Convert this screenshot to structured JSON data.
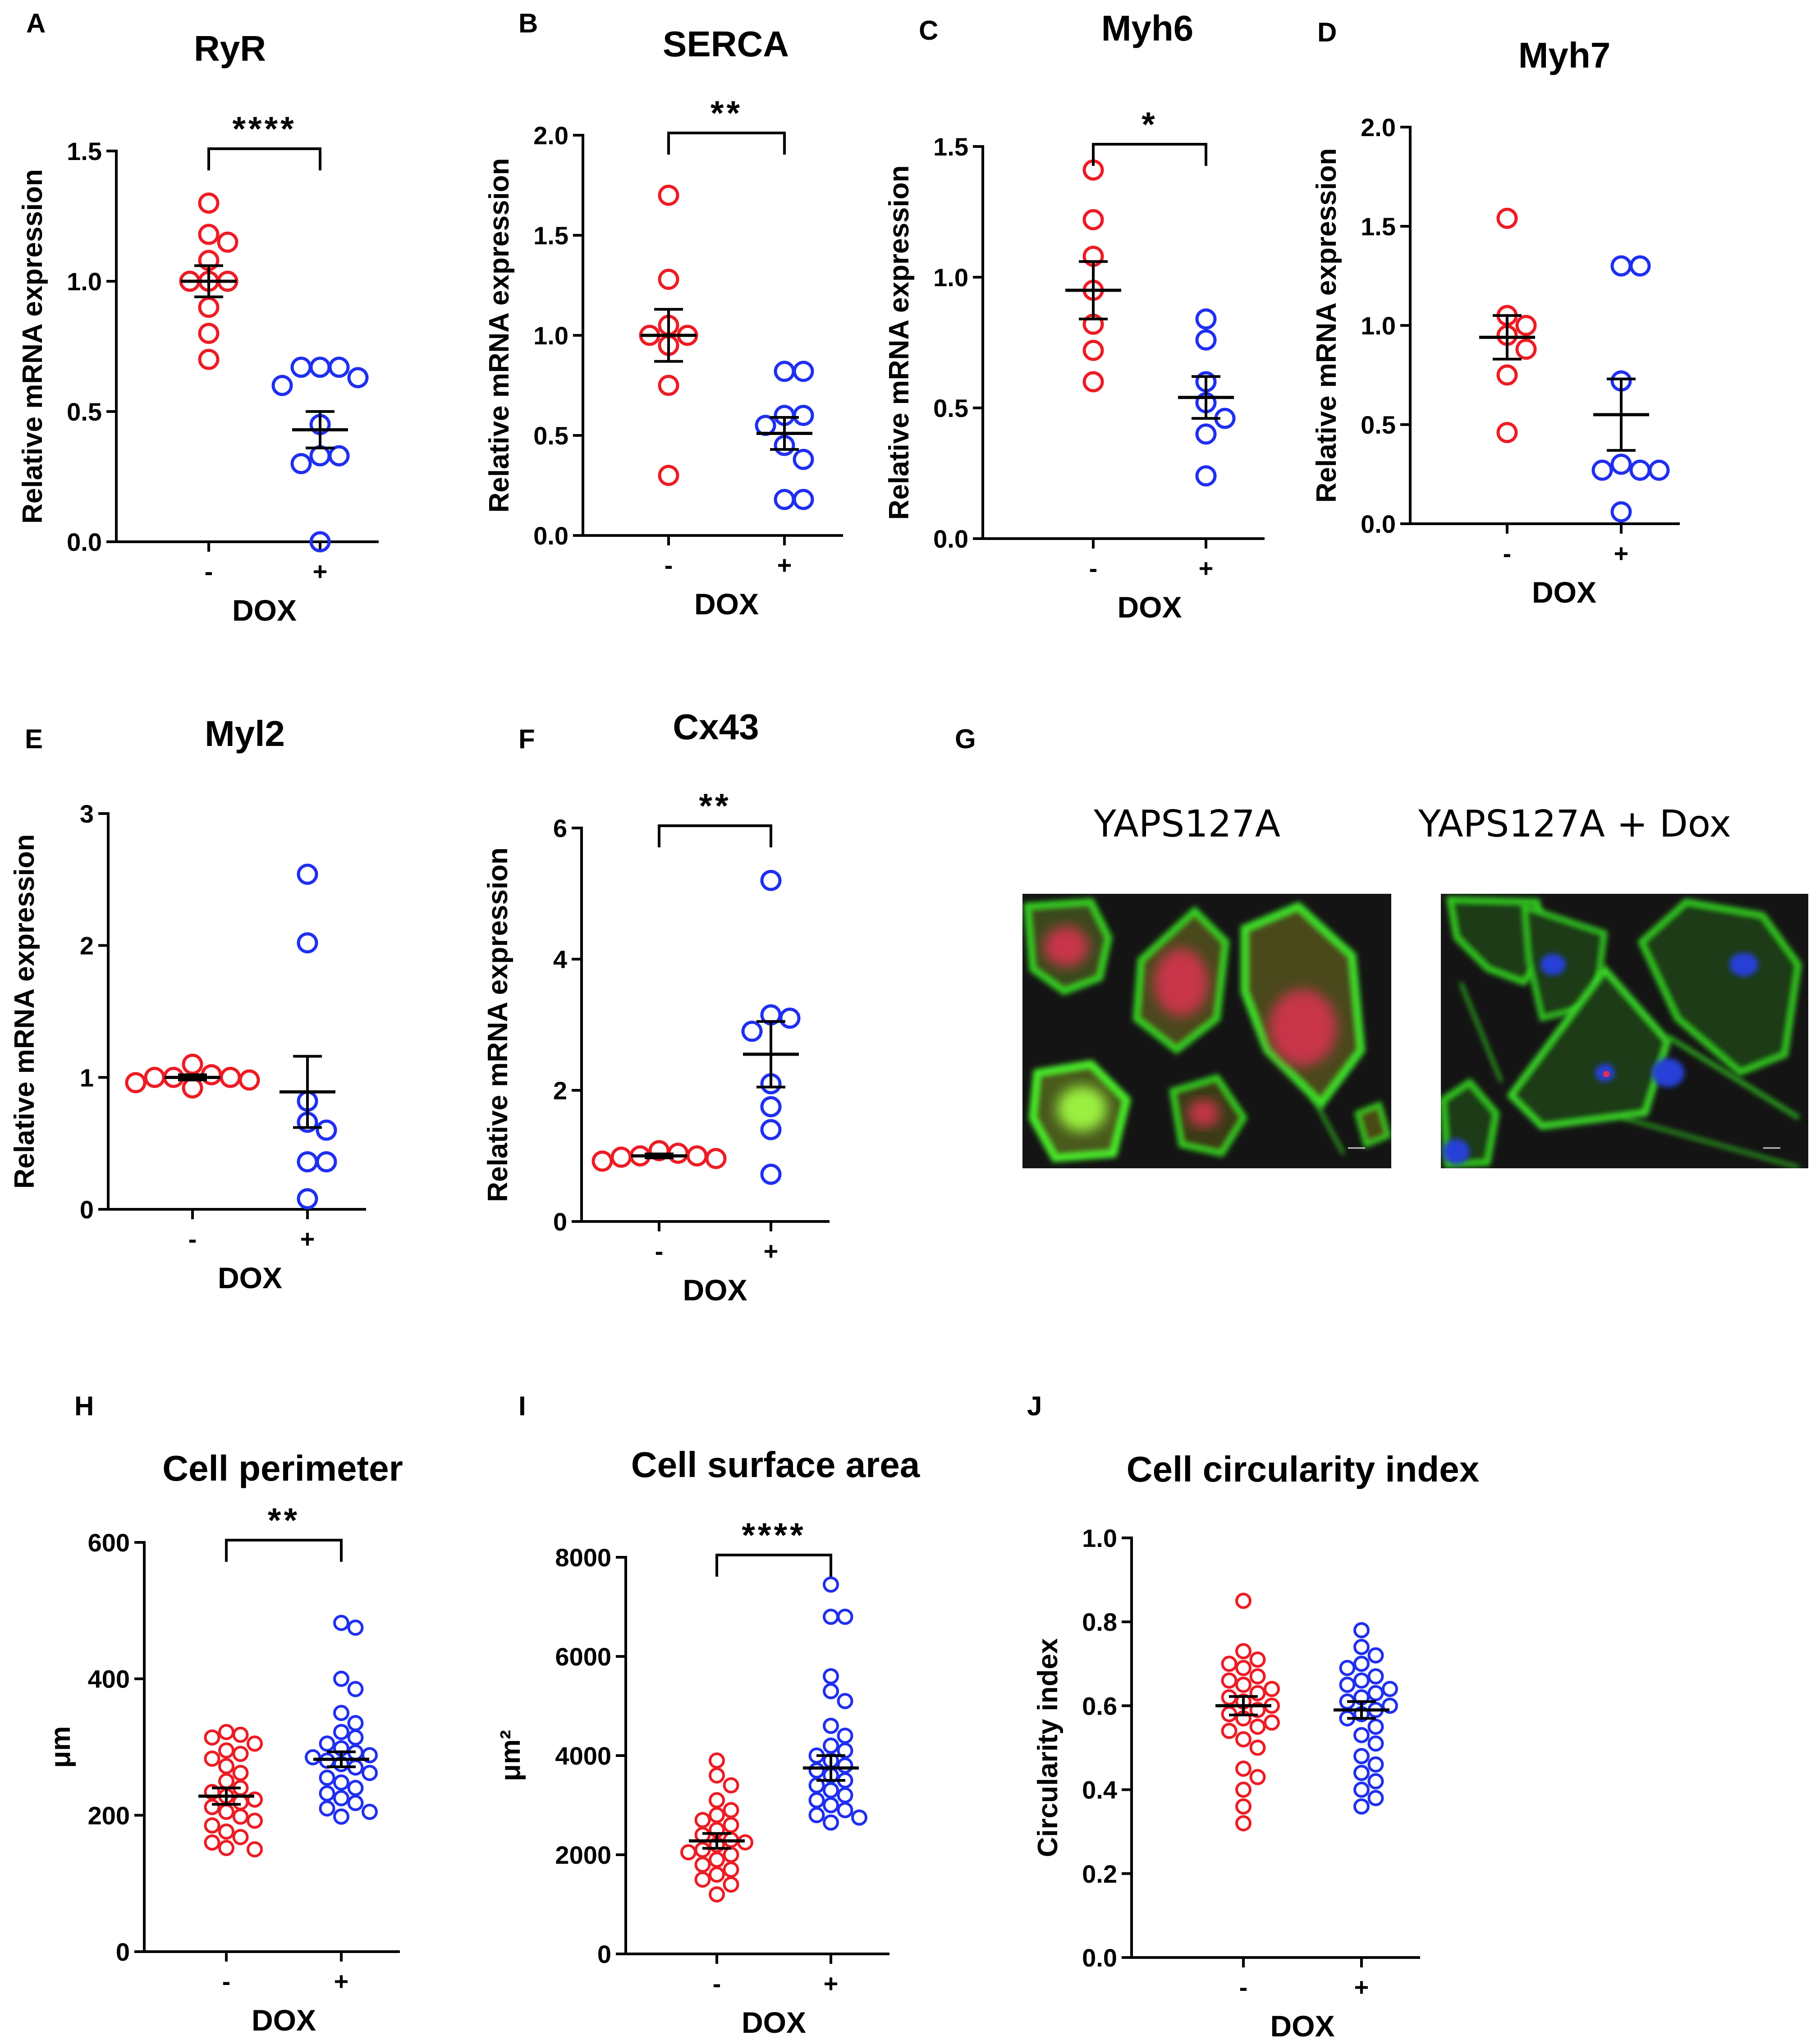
{
  "colors": {
    "control": "#ed1c24",
    "dox": "#1f2ff0",
    "axis": "#000000",
    "micrograph_bg": "#141414",
    "actin": "#34d424",
    "nucleus_red": "#c8344a",
    "nucleus_blue": "#2540d8"
  },
  "chart_data": [
    {
      "panel": "A",
      "type": "scatter",
      "title": "RyR",
      "ylabel": "Relative mRNA expression",
      "xlabel": "DOX",
      "groups": [
        "-",
        "+"
      ],
      "ylim": [
        0,
        1.5
      ],
      "yticks": [
        "0.0",
        "0.5",
        "1.0",
        "1.5"
      ],
      "significance": "****",
      "series": [
        {
          "name": "-",
          "mean": 1.0,
          "sem": 0.06,
          "values": [
            1.3,
            1.18,
            1.15,
            1.08,
            1.0,
            1.0,
            1.0,
            0.9,
            0.8,
            0.7
          ]
        },
        {
          "name": "+",
          "mean": 0.43,
          "sem": 0.07,
          "values": [
            0.67,
            0.67,
            0.67,
            0.63,
            0.6,
            0.45,
            0.33,
            0.33,
            0.3,
            0.0
          ]
        }
      ]
    },
    {
      "panel": "B",
      "type": "scatter",
      "title": "SERCA",
      "ylabel": "Relative mRNA expression",
      "xlabel": "DOX",
      "groups": [
        "-",
        "+"
      ],
      "ylim": [
        0,
        2.0
      ],
      "yticks": [
        "0.0",
        "0.5",
        "1.0",
        "1.5",
        "2.0"
      ],
      "significance": "**",
      "series": [
        {
          "name": "-",
          "mean": 1.0,
          "sem": 0.13,
          "values": [
            1.7,
            1.28,
            1.05,
            1.0,
            1.0,
            0.95,
            0.75,
            0.3
          ]
        },
        {
          "name": "+",
          "mean": 0.51,
          "sem": 0.08,
          "values": [
            0.82,
            0.82,
            0.6,
            0.6,
            0.55,
            0.45,
            0.38,
            0.18,
            0.18
          ]
        }
      ]
    },
    {
      "panel": "C",
      "type": "scatter",
      "title": "Myh6",
      "ylabel": "Relative mRNA expression",
      "xlabel": "DOX",
      "groups": [
        "-",
        "+"
      ],
      "ylim": [
        0,
        1.5
      ],
      "yticks": [
        "0.0",
        "0.5",
        "1.0",
        "1.5"
      ],
      "significance": "*",
      "series": [
        {
          "name": "-",
          "mean": 0.95,
          "sem": 0.11,
          "values": [
            1.41,
            1.22,
            1.08,
            0.95,
            0.82,
            0.72,
            0.6
          ]
        },
        {
          "name": "+",
          "mean": 0.54,
          "sem": 0.08,
          "values": [
            0.84,
            0.76,
            0.6,
            0.52,
            0.46,
            0.4,
            0.24
          ]
        }
      ]
    },
    {
      "panel": "D",
      "type": "scatter",
      "title": "Myh7",
      "ylabel": "Relative mRNA expression",
      "xlabel": "DOX",
      "groups": [
        "-",
        "+"
      ],
      "ylim": [
        0,
        2.0
      ],
      "yticks": [
        "0.0",
        "0.5",
        "1.0",
        "1.5",
        "2.0"
      ],
      "significance": "",
      "series": [
        {
          "name": "-",
          "mean": 0.94,
          "sem": 0.11,
          "values": [
            1.54,
            1.05,
            1.0,
            0.95,
            0.88,
            0.75,
            0.46
          ]
        },
        {
          "name": "+",
          "mean": 0.55,
          "sem": 0.18,
          "values": [
            1.3,
            1.3,
            0.72,
            0.3,
            0.27,
            0.27,
            0.27,
            0.06
          ]
        }
      ]
    },
    {
      "panel": "E",
      "type": "scatter",
      "title": "Myl2",
      "ylabel": "Relative mRNA expression",
      "xlabel": "DOX",
      "groups": [
        "-",
        "+"
      ],
      "ylim": [
        0,
        3
      ],
      "yticks": [
        "0",
        "1",
        "2",
        "3"
      ],
      "significance": "",
      "series": [
        {
          "name": "-",
          "mean": 1.0,
          "sem": 0.02,
          "values": [
            1.1,
            1.02,
            1.0,
            1.0,
            1.0,
            0.98,
            0.96,
            0.92
          ]
        },
        {
          "name": "+",
          "mean": 0.89,
          "sem": 0.27,
          "values": [
            2.54,
            2.02,
            0.82,
            0.66,
            0.6,
            0.36,
            0.36,
            0.08
          ]
        }
      ]
    },
    {
      "panel": "F",
      "type": "scatter",
      "title": "Cx43",
      "ylabel": "Relative mRNA expression",
      "xlabel": "DOX",
      "groups": [
        "-",
        "+"
      ],
      "ylim": [
        0,
        6
      ],
      "yticks": [
        "0",
        "2",
        "4",
        "6"
      ],
      "significance": "**",
      "series": [
        {
          "name": "-",
          "mean": 1.0,
          "sem": 0.03,
          "values": [
            1.08,
            1.04,
            1.0,
            1.0,
            0.98,
            0.96,
            0.92
          ]
        },
        {
          "name": "+",
          "mean": 2.55,
          "sem": 0.5,
          "values": [
            5.2,
            3.15,
            3.1,
            2.9,
            2.1,
            1.75,
            1.4,
            0.72
          ]
        }
      ]
    },
    {
      "panel": "H",
      "type": "scatter",
      "title": "Cell perimeter",
      "ylabel": "μm",
      "xlabel": "DOX",
      "groups": [
        "-",
        "+"
      ],
      "ylim": [
        0,
        600
      ],
      "yticks": [
        "0",
        "200",
        "400",
        "600"
      ],
      "significance": "**",
      "series": [
        {
          "name": "-",
          "mean": 228,
          "sem": 12,
          "values": [
            322,
            318,
            314,
            305,
            295,
            290,
            283,
            272,
            262,
            250,
            240,
            234,
            228,
            223,
            219,
            212,
            205,
            198,
            192,
            185,
            176,
            168,
            160,
            152,
            150
          ]
        },
        {
          "name": "+",
          "mean": 282,
          "sem": 11,
          "values": [
            482,
            475,
            400,
            385,
            350,
            335,
            322,
            314,
            305,
            298,
            292,
            288,
            285,
            280,
            275,
            270,
            262,
            255,
            248,
            240,
            232,
            225,
            218,
            210,
            205,
            198
          ]
        }
      ]
    },
    {
      "panel": "I",
      "type": "scatter",
      "title": "Cell surface area",
      "ylabel": "μm²",
      "xlabel": "DOX",
      "groups": [
        "-",
        "+"
      ],
      "ylim": [
        0,
        8000
      ],
      "yticks": [
        "0",
        "2000",
        "4000",
        "6000",
        "8000"
      ],
      "significance": "****",
      "series": [
        {
          "name": "-",
          "mean": 2280,
          "sem": 150,
          "values": [
            3900,
            3600,
            3400,
            3100,
            2900,
            2800,
            2700,
            2600,
            2500,
            2400,
            2300,
            2250,
            2200,
            2100,
            2050,
            2000,
            1900,
            1800,
            1700,
            1600,
            1500,
            1400,
            1200
          ]
        },
        {
          "name": "+",
          "mean": 3750,
          "sem": 250,
          "values": [
            7450,
            6800,
            6800,
            5600,
            5300,
            5100,
            4600,
            4400,
            4200,
            4100,
            4000,
            3900,
            3800,
            3700,
            3600,
            3500,
            3400,
            3300,
            3200,
            3100,
            3000,
            2900,
            2800,
            2750,
            2650
          ]
        }
      ]
    },
    {
      "panel": "J",
      "type": "scatter",
      "title": "Cell circularity index",
      "ylabel": "Circularity index",
      "xlabel": "DOX",
      "groups": [
        "-",
        "+"
      ],
      "ylim": [
        0,
        1.0
      ],
      "yticks": [
        "0.0",
        "0.2",
        "0.4",
        "0.6",
        "0.8",
        "1.0"
      ],
      "significance": "",
      "series": [
        {
          "name": "-",
          "mean": 0.6,
          "sem": 0.022,
          "values": [
            0.85,
            0.73,
            0.71,
            0.7,
            0.69,
            0.67,
            0.66,
            0.65,
            0.64,
            0.63,
            0.62,
            0.61,
            0.6,
            0.59,
            0.58,
            0.57,
            0.56,
            0.55,
            0.54,
            0.52,
            0.5,
            0.45,
            0.43,
            0.4,
            0.36,
            0.32
          ]
        },
        {
          "name": "+",
          "mean": 0.59,
          "sem": 0.02,
          "values": [
            0.78,
            0.74,
            0.72,
            0.7,
            0.69,
            0.67,
            0.66,
            0.65,
            0.64,
            0.63,
            0.62,
            0.61,
            0.6,
            0.59,
            0.58,
            0.57,
            0.55,
            0.53,
            0.51,
            0.48,
            0.46,
            0.44,
            0.42,
            0.4,
            0.38,
            0.36
          ]
        }
      ]
    }
  ],
  "panel_g": {
    "letter": "G",
    "images": [
      {
        "label": "YAPS127A",
        "nucleus": "red"
      },
      {
        "label": "YAPS127A + Dox",
        "nucleus": "blue"
      }
    ]
  }
}
